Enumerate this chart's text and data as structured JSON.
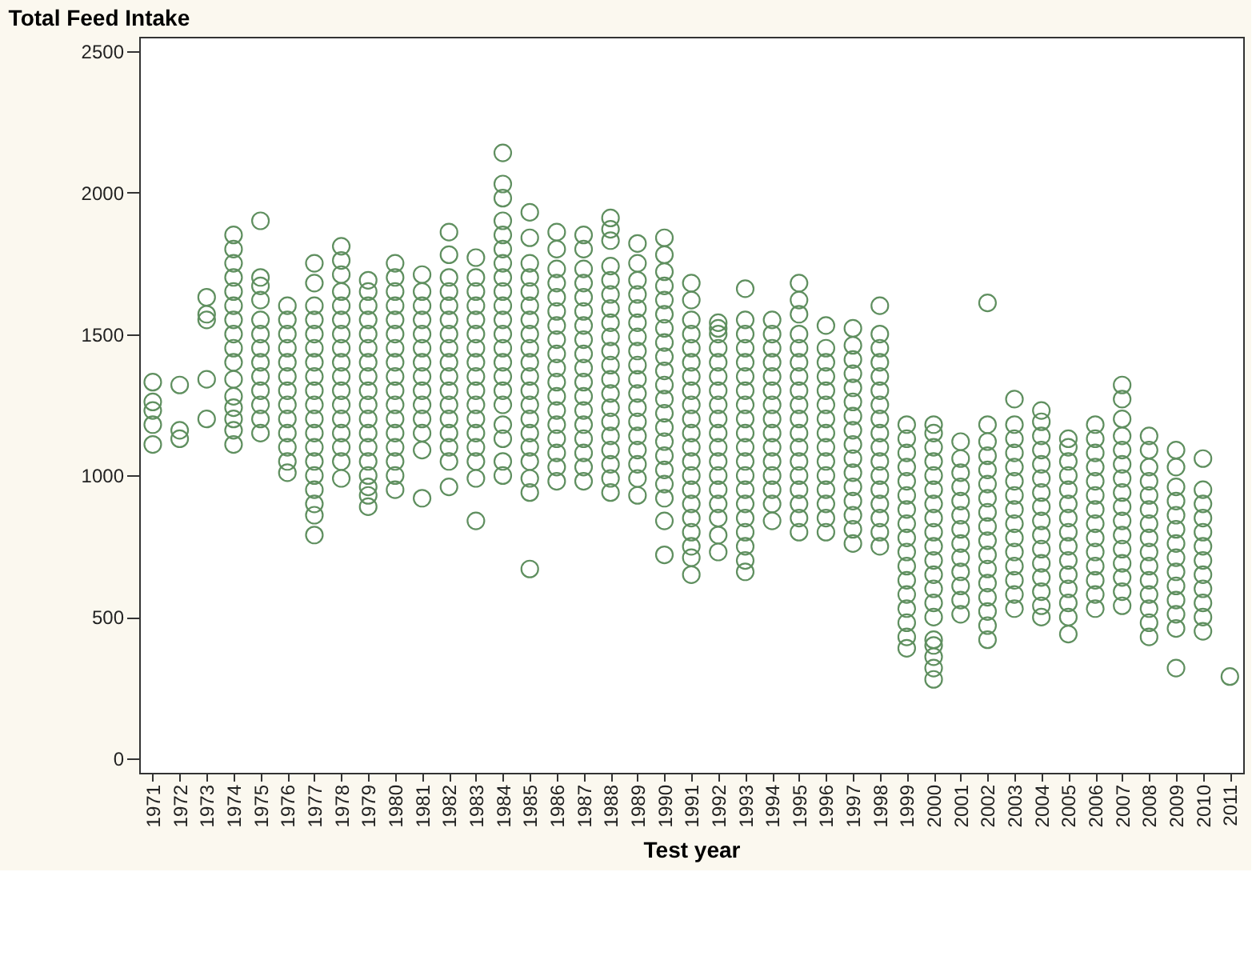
{
  "chart_data": {
    "type": "scatter",
    "title": "Total Feed Intake",
    "xlabel": "Test year",
    "xlim": [
      "1970-07",
      "2011-07"
    ],
    "xticks": [
      "1971",
      "1972",
      "1973",
      "1974",
      "1975",
      "1976",
      "1977",
      "1978",
      "1979",
      "1980",
      "1981",
      "1982",
      "1983",
      "1984",
      "1985",
      "1986",
      "1987",
      "1988",
      "1989",
      "1990",
      "1991",
      "1992",
      "1993",
      "1994",
      "1995",
      "1996",
      "1997",
      "1998",
      "1999",
      "2000",
      "2001",
      "2002",
      "2003",
      "2004",
      "2005",
      "2006",
      "2007",
      "2008",
      "2009",
      "2010",
      "2011"
    ],
    "ylim": [
      -50,
      2550
    ],
    "yticks": [
      0,
      500,
      1000,
      1500,
      2000,
      2500
    ],
    "grid": false,
    "legend": false,
    "marker": "circle",
    "series": [
      {
        "color": "#5f8f5f",
        "x": [
          "1971",
          "1971",
          "1971",
          "1971",
          "1971"
        ],
        "values": [
          1110,
          1180,
          1230,
          1260,
          1330
        ]
      },
      {
        "color": "#5f8f5f",
        "x": [
          "1972",
          "1972",
          "1972"
        ],
        "values": [
          1130,
          1160,
          1320
        ]
      },
      {
        "color": "#5f8f5f",
        "x": [
          "1973",
          "1973",
          "1973",
          "1973",
          "1973"
        ],
        "values": [
          1200,
          1340,
          1550,
          1570,
          1630
        ]
      },
      {
        "color": "#5f8f5f",
        "x": [
          "1974",
          "1974",
          "1974",
          "1974",
          "1974",
          "1974",
          "1974",
          "1974",
          "1974",
          "1974",
          "1974",
          "1974",
          "1974",
          "1974",
          "1974",
          "1974"
        ],
        "values": [
          1110,
          1160,
          1200,
          1240,
          1280,
          1340,
          1400,
          1450,
          1500,
          1550,
          1600,
          1650,
          1700,
          1750,
          1800,
          1850
        ]
      },
      {
        "color": "#5f8f5f",
        "x": [
          "1975",
          "1975",
          "1975",
          "1975",
          "1975",
          "1975",
          "1975",
          "1975",
          "1975",
          "1975",
          "1975",
          "1975",
          "1975"
        ],
        "values": [
          1150,
          1200,
          1250,
          1300,
          1350,
          1400,
          1450,
          1500,
          1550,
          1620,
          1670,
          1700,
          1900
        ]
      },
      {
        "color": "#5f8f5f",
        "x": [
          "1976",
          "1976",
          "1976",
          "1976",
          "1976",
          "1976",
          "1976",
          "1976",
          "1976",
          "1976",
          "1976",
          "1976",
          "1976"
        ],
        "values": [
          1010,
          1050,
          1100,
          1150,
          1200,
          1250,
          1300,
          1350,
          1400,
          1450,
          1500,
          1550,
          1600
        ]
      },
      {
        "color": "#5f8f5f",
        "x": [
          "1977",
          "1977",
          "1977",
          "1977",
          "1977",
          "1977",
          "1977",
          "1977",
          "1977",
          "1977",
          "1977",
          "1977",
          "1977",
          "1977",
          "1977",
          "1977",
          "1977",
          "1977",
          "1977"
        ],
        "values": [
          790,
          860,
          900,
          950,
          1000,
          1050,
          1100,
          1150,
          1200,
          1250,
          1300,
          1350,
          1400,
          1450,
          1500,
          1550,
          1600,
          1680,
          1750
        ]
      },
      {
        "color": "#5f8f5f",
        "x": [
          "1978",
          "1978",
          "1978",
          "1978",
          "1978",
          "1978",
          "1978",
          "1978",
          "1978",
          "1978",
          "1978",
          "1978",
          "1978",
          "1978",
          "1978",
          "1978",
          "1978"
        ],
        "values": [
          990,
          1050,
          1100,
          1150,
          1200,
          1250,
          1300,
          1350,
          1400,
          1450,
          1500,
          1550,
          1600,
          1650,
          1710,
          1760,
          1810
        ]
      },
      {
        "color": "#5f8f5f",
        "x": [
          "1979",
          "1979",
          "1979",
          "1979",
          "1979",
          "1979",
          "1979",
          "1979",
          "1979",
          "1979",
          "1979",
          "1979",
          "1979",
          "1979",
          "1979",
          "1979",
          "1979",
          "1979"
        ],
        "values": [
          890,
          930,
          960,
          1000,
          1050,
          1100,
          1150,
          1200,
          1250,
          1300,
          1350,
          1400,
          1450,
          1500,
          1550,
          1600,
          1650,
          1690
        ]
      },
      {
        "color": "#5f8f5f",
        "x": [
          "1980",
          "1980",
          "1980",
          "1980",
          "1980",
          "1980",
          "1980",
          "1980",
          "1980",
          "1980",
          "1980",
          "1980",
          "1980",
          "1980",
          "1980",
          "1980",
          "1980"
        ],
        "values": [
          950,
          1000,
          1050,
          1100,
          1150,
          1200,
          1250,
          1300,
          1350,
          1400,
          1450,
          1500,
          1550,
          1600,
          1650,
          1700,
          1750
        ]
      },
      {
        "color": "#5f8f5f",
        "x": [
          "1981",
          "1981",
          "1981",
          "1981",
          "1981",
          "1981",
          "1981",
          "1981",
          "1981",
          "1981",
          "1981",
          "1981",
          "1981",
          "1981"
        ],
        "values": [
          920,
          1090,
          1150,
          1200,
          1250,
          1300,
          1350,
          1400,
          1450,
          1500,
          1550,
          1600,
          1650,
          1710
        ]
      },
      {
        "color": "#5f8f5f",
        "x": [
          "1982",
          "1982",
          "1982",
          "1982",
          "1982",
          "1982",
          "1982",
          "1982",
          "1982",
          "1982",
          "1982",
          "1982",
          "1982",
          "1982",
          "1982",
          "1982",
          "1982"
        ],
        "values": [
          960,
          1050,
          1100,
          1150,
          1200,
          1250,
          1300,
          1350,
          1400,
          1450,
          1500,
          1550,
          1600,
          1650,
          1700,
          1780,
          1860
        ]
      },
      {
        "color": "#5f8f5f",
        "x": [
          "1983",
          "1983",
          "1983",
          "1983",
          "1983",
          "1983",
          "1983",
          "1983",
          "1983",
          "1983",
          "1983",
          "1983",
          "1983",
          "1983",
          "1983",
          "1983",
          "1983"
        ],
        "values": [
          840,
          990,
          1050,
          1100,
          1150,
          1200,
          1250,
          1300,
          1350,
          1400,
          1450,
          1500,
          1550,
          1600,
          1650,
          1700,
          1770
        ]
      },
      {
        "color": "#5f8f5f",
        "x": [
          "1984",
          "1984",
          "1984",
          "1984",
          "1984",
          "1984",
          "1984",
          "1984",
          "1984",
          "1984",
          "1984",
          "1984",
          "1984",
          "1984",
          "1984",
          "1984",
          "1984",
          "1984",
          "1984",
          "1984",
          "1984"
        ],
        "values": [
          1000,
          1050,
          1130,
          1180,
          1250,
          1300,
          1350,
          1400,
          1450,
          1500,
          1550,
          1600,
          1650,
          1700,
          1750,
          1800,
          1850,
          1900,
          1980,
          2030,
          2140
        ]
      },
      {
        "color": "#5f8f5f",
        "x": [
          "1985",
          "1985",
          "1985",
          "1985",
          "1985",
          "1985",
          "1985",
          "1985",
          "1985",
          "1985",
          "1985",
          "1985",
          "1985",
          "1985",
          "1985",
          "1985",
          "1985",
          "1985",
          "1985",
          "1985"
        ],
        "values": [
          670,
          940,
          990,
          1050,
          1100,
          1150,
          1200,
          1250,
          1300,
          1350,
          1400,
          1450,
          1500,
          1550,
          1600,
          1650,
          1700,
          1750,
          1840,
          1930
        ]
      },
      {
        "color": "#5f8f5f",
        "x": [
          "1986",
          "1986",
          "1986",
          "1986",
          "1986",
          "1986",
          "1986",
          "1986",
          "1986",
          "1986",
          "1986",
          "1986",
          "1986",
          "1986",
          "1986",
          "1986",
          "1986",
          "1986"
        ],
        "values": [
          980,
          1030,
          1080,
          1130,
          1180,
          1230,
          1280,
          1330,
          1380,
          1430,
          1480,
          1530,
          1580,
          1630,
          1680,
          1730,
          1800,
          1860
        ]
      },
      {
        "color": "#5f8f5f",
        "x": [
          "1987",
          "1987",
          "1987",
          "1987",
          "1987",
          "1987",
          "1987",
          "1987",
          "1987",
          "1987",
          "1987",
          "1987",
          "1987",
          "1987",
          "1987",
          "1987",
          "1987",
          "1987"
        ],
        "values": [
          980,
          1030,
          1080,
          1130,
          1180,
          1230,
          1280,
          1330,
          1380,
          1430,
          1480,
          1530,
          1580,
          1630,
          1680,
          1730,
          1800,
          1850
        ]
      },
      {
        "color": "#5f8f5f",
        "x": [
          "1988",
          "1988",
          "1988",
          "1988",
          "1988",
          "1988",
          "1988",
          "1988",
          "1988",
          "1988",
          "1988",
          "1988",
          "1988",
          "1988",
          "1988",
          "1988",
          "1988",
          "1988",
          "1988",
          "1988"
        ],
        "values": [
          940,
          990,
          1040,
          1090,
          1140,
          1190,
          1240,
          1290,
          1340,
          1390,
          1440,
          1490,
          1540,
          1590,
          1640,
          1690,
          1740,
          1830,
          1870,
          1910
        ]
      },
      {
        "color": "#5f8f5f",
        "x": [
          "1989",
          "1989",
          "1989",
          "1989",
          "1989",
          "1989",
          "1989",
          "1989",
          "1989",
          "1989",
          "1989",
          "1989",
          "1989",
          "1989",
          "1989",
          "1989",
          "1989",
          "1989"
        ],
        "values": [
          930,
          990,
          1040,
          1090,
          1140,
          1190,
          1240,
          1290,
          1340,
          1390,
          1440,
          1490,
          1540,
          1590,
          1640,
          1690,
          1750,
          1820
        ]
      },
      {
        "color": "#5f8f5f",
        "x": [
          "1990",
          "1990",
          "1990",
          "1990",
          "1990",
          "1990",
          "1990",
          "1990",
          "1990",
          "1990",
          "1990",
          "1990",
          "1990",
          "1990",
          "1990",
          "1990",
          "1990",
          "1990",
          "1990",
          "1990",
          "1990"
        ],
        "values": [
          720,
          840,
          920,
          970,
          1020,
          1070,
          1120,
          1170,
          1220,
          1270,
          1320,
          1370,
          1420,
          1470,
          1520,
          1570,
          1620,
          1670,
          1720,
          1780,
          1840
        ]
      },
      {
        "color": "#5f8f5f",
        "x": [
          "1991",
          "1991",
          "1991",
          "1991",
          "1991",
          "1991",
          "1991",
          "1991",
          "1991",
          "1991",
          "1991",
          "1991",
          "1991",
          "1991",
          "1991",
          "1991",
          "1991",
          "1991",
          "1991",
          "1991",
          "1991"
        ],
        "values": [
          650,
          710,
          750,
          800,
          850,
          900,
          950,
          1000,
          1050,
          1100,
          1150,
          1200,
          1250,
          1300,
          1350,
          1400,
          1450,
          1500,
          1550,
          1620,
          1680
        ]
      },
      {
        "color": "#5f8f5f",
        "x": [
          "1992",
          "1992",
          "1992",
          "1992",
          "1992",
          "1992",
          "1992",
          "1992",
          "1992",
          "1992",
          "1992",
          "1992",
          "1992",
          "1992",
          "1992",
          "1992",
          "1992",
          "1992"
        ],
        "values": [
          730,
          790,
          850,
          900,
          950,
          1000,
          1050,
          1100,
          1150,
          1200,
          1250,
          1300,
          1350,
          1400,
          1450,
          1500,
          1520,
          1540
        ]
      },
      {
        "color": "#5f8f5f",
        "x": [
          "1993",
          "1993",
          "1993",
          "1993",
          "1993",
          "1993",
          "1993",
          "1993",
          "1993",
          "1993",
          "1993",
          "1993",
          "1993",
          "1993",
          "1993",
          "1993",
          "1993",
          "1993",
          "1993",
          "1993"
        ],
        "values": [
          660,
          700,
          750,
          800,
          850,
          900,
          950,
          1000,
          1050,
          1100,
          1150,
          1200,
          1250,
          1300,
          1350,
          1400,
          1450,
          1500,
          1550,
          1660
        ]
      },
      {
        "color": "#5f8f5f",
        "x": [
          "1994",
          "1994",
          "1994",
          "1994",
          "1994",
          "1994",
          "1994",
          "1994",
          "1994",
          "1994",
          "1994",
          "1994",
          "1994",
          "1994",
          "1994"
        ],
        "values": [
          840,
          900,
          950,
          1000,
          1050,
          1100,
          1150,
          1200,
          1250,
          1300,
          1350,
          1400,
          1450,
          1500,
          1550
        ]
      },
      {
        "color": "#5f8f5f",
        "x": [
          "1995",
          "1995",
          "1995",
          "1995",
          "1995",
          "1995",
          "1995",
          "1995",
          "1995",
          "1995",
          "1995",
          "1995",
          "1995",
          "1995",
          "1995",
          "1995",
          "1995",
          "1995"
        ],
        "values": [
          800,
          850,
          900,
          950,
          1000,
          1050,
          1100,
          1150,
          1200,
          1250,
          1300,
          1350,
          1400,
          1450,
          1500,
          1570,
          1620,
          1680
        ]
      },
      {
        "color": "#5f8f5f",
        "x": [
          "1996",
          "1996",
          "1996",
          "1996",
          "1996",
          "1996",
          "1996",
          "1996",
          "1996",
          "1996",
          "1996",
          "1996",
          "1996",
          "1996",
          "1996"
        ],
        "values": [
          800,
          850,
          900,
          950,
          1000,
          1050,
          1100,
          1150,
          1200,
          1250,
          1300,
          1350,
          1400,
          1450,
          1530
        ]
      },
      {
        "color": "#5f8f5f",
        "x": [
          "1997",
          "1997",
          "1997",
          "1997",
          "1997",
          "1997",
          "1997",
          "1997",
          "1997",
          "1997",
          "1997",
          "1997",
          "1997",
          "1997",
          "1997",
          "1997"
        ],
        "values": [
          760,
          810,
          860,
          910,
          960,
          1010,
          1060,
          1110,
          1160,
          1210,
          1260,
          1310,
          1360,
          1410,
          1460,
          1520
        ]
      },
      {
        "color": "#5f8f5f",
        "x": [
          "1998",
          "1998",
          "1998",
          "1998",
          "1998",
          "1998",
          "1998",
          "1998",
          "1998",
          "1998",
          "1998",
          "1998",
          "1998",
          "1998",
          "1998",
          "1998",
          "1998"
        ],
        "values": [
          750,
          800,
          850,
          900,
          950,
          1000,
          1050,
          1100,
          1150,
          1200,
          1250,
          1300,
          1350,
          1400,
          1450,
          1500,
          1600
        ]
      },
      {
        "color": "#5f8f5f",
        "x": [
          "1999",
          "1999",
          "1999",
          "1999",
          "1999",
          "1999",
          "1999",
          "1999",
          "1999",
          "1999",
          "1999",
          "1999",
          "1999",
          "1999",
          "1999",
          "1999",
          "1999"
        ],
        "values": [
          390,
          430,
          480,
          530,
          580,
          630,
          680,
          730,
          780,
          830,
          880,
          930,
          980,
          1030,
          1080,
          1130,
          1180
        ]
      },
      {
        "color": "#5f8f5f",
        "x": [
          "2000",
          "2000",
          "2000",
          "2000",
          "2000",
          "2000",
          "2000",
          "2000",
          "2000",
          "2000",
          "2000",
          "2000",
          "2000",
          "2000",
          "2000",
          "2000",
          "2000",
          "2000",
          "2000",
          "2000"
        ],
        "values": [
          280,
          320,
          360,
          400,
          420,
          500,
          550,
          600,
          650,
          700,
          750,
          800,
          850,
          900,
          950,
          1000,
          1050,
          1100,
          1150,
          1180
        ]
      },
      {
        "color": "#5f8f5f",
        "x": [
          "2001",
          "2001",
          "2001",
          "2001",
          "2001",
          "2001",
          "2001",
          "2001",
          "2001",
          "2001",
          "2001",
          "2001",
          "2001"
        ],
        "values": [
          510,
          560,
          610,
          660,
          710,
          760,
          810,
          860,
          910,
          960,
          1010,
          1060,
          1120
        ]
      },
      {
        "color": "#5f8f5f",
        "x": [
          "2002",
          "2002",
          "2002",
          "2002",
          "2002",
          "2002",
          "2002",
          "2002",
          "2002",
          "2002",
          "2002",
          "2002",
          "2002",
          "2002",
          "2002",
          "2002",
          "2002"
        ],
        "values": [
          420,
          470,
          520,
          570,
          620,
          670,
          720,
          770,
          820,
          870,
          920,
          970,
          1020,
          1070,
          1120,
          1180,
          1610
        ]
      },
      {
        "color": "#5f8f5f",
        "x": [
          "2003",
          "2003",
          "2003",
          "2003",
          "2003",
          "2003",
          "2003",
          "2003",
          "2003",
          "2003",
          "2003",
          "2003",
          "2003",
          "2003",
          "2003"
        ],
        "values": [
          530,
          580,
          630,
          680,
          730,
          780,
          830,
          880,
          930,
          980,
          1030,
          1080,
          1130,
          1180,
          1270
        ]
      },
      {
        "color": "#5f8f5f",
        "x": [
          "2004",
          "2004",
          "2004",
          "2004",
          "2004",
          "2004",
          "2004",
          "2004",
          "2004",
          "2004",
          "2004",
          "2004",
          "2004",
          "2004",
          "2004",
          "2004"
        ],
        "values": [
          500,
          540,
          590,
          640,
          690,
          740,
          790,
          840,
          890,
          940,
          990,
          1040,
          1090,
          1140,
          1190,
          1230
        ]
      },
      {
        "color": "#5f8f5f",
        "x": [
          "2005",
          "2005",
          "2005",
          "2005",
          "2005",
          "2005",
          "2005",
          "2005",
          "2005",
          "2005",
          "2005",
          "2005",
          "2005",
          "2005",
          "2005"
        ],
        "values": [
          440,
          500,
          550,
          600,
          650,
          700,
          750,
          800,
          850,
          900,
          950,
          1000,
          1050,
          1100,
          1130
        ]
      },
      {
        "color": "#5f8f5f",
        "x": [
          "2006",
          "2006",
          "2006",
          "2006",
          "2006",
          "2006",
          "2006",
          "2006",
          "2006",
          "2006",
          "2006",
          "2006",
          "2006",
          "2006"
        ],
        "values": [
          530,
          580,
          630,
          680,
          730,
          780,
          830,
          880,
          930,
          980,
          1030,
          1080,
          1130,
          1180
        ]
      },
      {
        "color": "#5f8f5f",
        "x": [
          "2007",
          "2007",
          "2007",
          "2007",
          "2007",
          "2007",
          "2007",
          "2007",
          "2007",
          "2007",
          "2007",
          "2007",
          "2007",
          "2007",
          "2007",
          "2007"
        ],
        "values": [
          540,
          590,
          640,
          690,
          740,
          790,
          840,
          890,
          940,
          990,
          1040,
          1090,
          1140,
          1200,
          1270,
          1320
        ]
      },
      {
        "color": "#5f8f5f",
        "x": [
          "2008",
          "2008",
          "2008",
          "2008",
          "2008",
          "2008",
          "2008",
          "2008",
          "2008",
          "2008",
          "2008",
          "2008",
          "2008",
          "2008",
          "2008"
        ],
        "values": [
          430,
          480,
          530,
          580,
          630,
          680,
          730,
          780,
          830,
          880,
          930,
          980,
          1030,
          1090,
          1140
        ]
      },
      {
        "color": "#5f8f5f",
        "x": [
          "2009",
          "2009",
          "2009",
          "2009",
          "2009",
          "2009",
          "2009",
          "2009",
          "2009",
          "2009",
          "2009",
          "2009",
          "2009",
          "2009"
        ],
        "values": [
          320,
          460,
          510,
          560,
          610,
          660,
          710,
          760,
          810,
          860,
          910,
          960,
          1030,
          1090
        ]
      },
      {
        "color": "#5f8f5f",
        "x": [
          "2010",
          "2010",
          "2010",
          "2010",
          "2010",
          "2010",
          "2010",
          "2010",
          "2010",
          "2010",
          "2010",
          "2010"
        ],
        "values": [
          450,
          500,
          550,
          600,
          650,
          700,
          750,
          800,
          850,
          900,
          950,
          1060
        ]
      },
      {
        "color": "#5f8f5f",
        "x": [
          "2011"
        ],
        "values": [
          290
        ]
      }
    ]
  }
}
